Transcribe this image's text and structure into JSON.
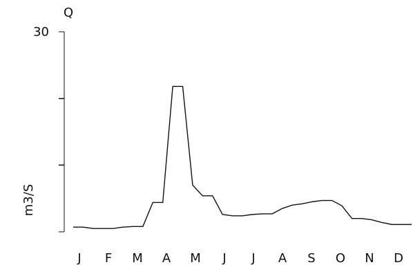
{
  "chart_data": {
    "type": "line",
    "title": "Q",
    "ylabel": "m3/S",
    "xlabel": "",
    "ylim": [
      0,
      30
    ],
    "y_ticks": [
      0,
      10,
      20,
      30
    ],
    "y_tick_labels": [
      "",
      "",
      "",
      "30"
    ],
    "months": [
      "J",
      "F",
      "M",
      "A",
      "M",
      "J",
      "J",
      "A",
      "S",
      "O",
      "N",
      "D"
    ],
    "grid": false,
    "series": [
      {
        "values": [
          0.7,
          0.7,
          0.5,
          0.5,
          0.5,
          0.7,
          0.8,
          0.8,
          4.4,
          4.4,
          21.8,
          21.8,
          7.0,
          5.4,
          5.4,
          2.6,
          2.4,
          2.4,
          2.6,
          2.7,
          2.7,
          3.5,
          4.0,
          4.2,
          4.5,
          4.7,
          4.7,
          3.9,
          2.0,
          2.0,
          1.8,
          1.4,
          1.1,
          1.1,
          1.1
        ]
      }
    ]
  }
}
